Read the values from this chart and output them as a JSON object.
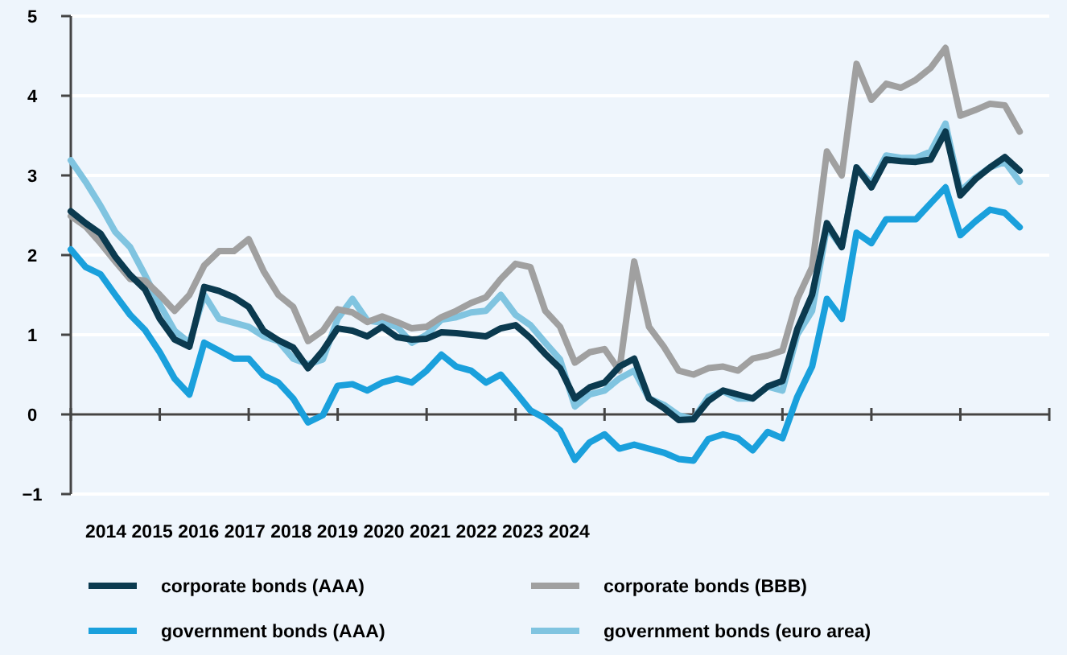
{
  "chart_data": {
    "type": "line",
    "categories": [
      null,
      null,
      null,
      null,
      null,
      null,
      null,
      null,
      null,
      null,
      null,
      null,
      null,
      null,
      null,
      null,
      null,
      null,
      null,
      null,
      null,
      null,
      null,
      null,
      null,
      null,
      null,
      null,
      null,
      null,
      null,
      null,
      null,
      null,
      null,
      null,
      null,
      null,
      null,
      null,
      null,
      null,
      null,
      null,
      null,
      null,
      null,
      null,
      null,
      null,
      null,
      null,
      null,
      null,
      null,
      null,
      null,
      null,
      null,
      null,
      null,
      null,
      null,
      null,
      null
    ],
    "ylim": [
      -1,
      5
    ],
    "yticks": [
      {
        "value": -1,
        "label": "−1"
      },
      0,
      1,
      2,
      3,
      4,
      5
    ],
    "grid": "y",
    "legend": "bottom",
    "marker": "none",
    "line_style": "solid",
    "annotations": [
      "2014",
      "2015",
      "2016",
      "2017",
      "2018",
      "2019",
      "2020",
      "2021",
      "2022",
      "2023",
      "2024"
    ],
    "series": [
      {
        "name": "corporate bonds (AAA)",
        "color": "#0b3a4f",
        "values": [
          2.55,
          2.4,
          2.27,
          1.98,
          1.75,
          1.57,
          1.2,
          0.94,
          0.85,
          1.6,
          1.55,
          1.47,
          1.35,
          1.05,
          0.93,
          0.84,
          0.58,
          0.8,
          1.08,
          1.05,
          0.98,
          1.1,
          0.97,
          0.94,
          0.95,
          1.03,
          1.02,
          1.0,
          0.98,
          1.08,
          1.12,
          0.96,
          0.76,
          0.58,
          0.2,
          0.34,
          0.4,
          0.6,
          0.7,
          0.2,
          0.08,
          -0.07,
          -0.06,
          0.17,
          0.3,
          0.25,
          0.2,
          0.35,
          0.42,
          1.07,
          1.5,
          2.4,
          2.1,
          3.1,
          2.85,
          3.2,
          3.18,
          3.17,
          3.2,
          3.55,
          2.75,
          2.95,
          3.1,
          3.23,
          3.06
        ]
      },
      {
        "name": "corporate bonds (BBB)",
        "color": "#a0a0a0",
        "values": [
          2.49,
          2.36,
          2.15,
          1.92,
          1.7,
          1.68,
          1.5,
          1.3,
          1.5,
          1.87,
          2.05,
          2.05,
          2.2,
          1.8,
          1.5,
          1.35,
          0.92,
          1.05,
          1.32,
          1.28,
          1.16,
          1.23,
          1.16,
          1.08,
          1.1,
          1.22,
          1.3,
          1.4,
          1.47,
          1.7,
          1.89,
          1.85,
          1.3,
          1.1,
          0.65,
          0.78,
          0.82,
          0.55,
          1.92,
          1.1,
          0.85,
          0.55,
          0.5,
          0.58,
          0.6,
          0.55,
          0.7,
          0.74,
          0.8,
          1.45,
          1.85,
          3.3,
          3.0,
          4.4,
          3.95,
          4.15,
          4.1,
          4.2,
          4.35,
          4.6,
          3.75,
          3.82,
          3.9,
          3.88,
          3.55
        ]
      },
      {
        "name": "government bonds (AAA)",
        "color": "#1aa0dc",
        "values": [
          2.07,
          1.85,
          1.76,
          1.5,
          1.25,
          1.06,
          0.78,
          0.45,
          0.25,
          0.9,
          0.8,
          0.7,
          0.7,
          0.49,
          0.4,
          0.2,
          -0.1,
          -0.01,
          0.36,
          0.38,
          0.3,
          0.4,
          0.45,
          0.4,
          0.55,
          0.75,
          0.6,
          0.55,
          0.4,
          0.5,
          0.28,
          0.05,
          -0.05,
          -0.2,
          -0.57,
          -0.35,
          -0.25,
          -0.43,
          -0.38,
          -0.43,
          -0.48,
          -0.56,
          -0.58,
          -0.31,
          -0.25,
          -0.3,
          -0.45,
          -0.22,
          -0.3,
          0.22,
          0.6,
          1.45,
          1.2,
          2.28,
          2.15,
          2.45,
          2.45,
          2.45,
          2.65,
          2.85,
          2.25,
          2.42,
          2.57,
          2.53,
          2.35
        ]
      },
      {
        "name": "government bonds (euro area)",
        "color": "#80c4e0",
        "values": [
          3.19,
          2.92,
          2.62,
          2.29,
          2.1,
          1.75,
          1.38,
          1.05,
          0.9,
          1.5,
          1.2,
          1.15,
          1.1,
          0.98,
          0.92,
          0.7,
          0.63,
          0.69,
          1.2,
          1.45,
          1.18,
          1.15,
          1.1,
          0.9,
          1.0,
          1.19,
          1.22,
          1.28,
          1.3,
          1.5,
          1.25,
          1.12,
          0.9,
          0.69,
          0.1,
          0.25,
          0.3,
          0.45,
          0.55,
          0.2,
          0.12,
          -0.01,
          -0.06,
          0.22,
          0.29,
          0.2,
          0.2,
          0.35,
          0.3,
          1.0,
          1.3,
          2.35,
          2.1,
          3.1,
          2.9,
          3.25,
          3.22,
          3.22,
          3.3,
          3.65,
          2.8,
          2.97,
          3.1,
          3.17,
          2.92
        ]
      }
    ]
  }
}
